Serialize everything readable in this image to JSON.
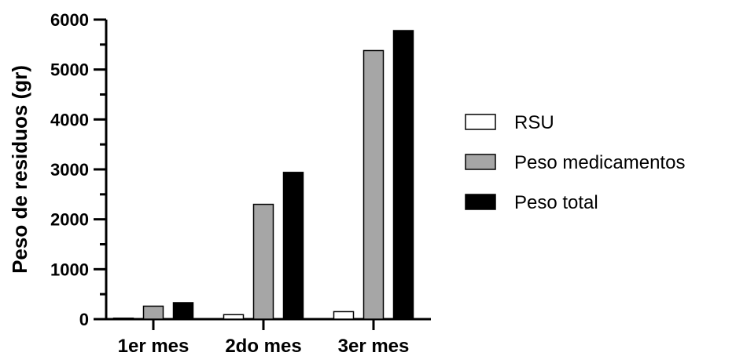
{
  "chart_data": {
    "type": "bar",
    "title": "",
    "xlabel": "",
    "ylabel": "Peso de residuos (gr)",
    "categories": [
      "1er mes",
      "2do mes",
      "3er mes"
    ],
    "ylim": [
      0,
      6000
    ],
    "yticks": [
      0,
      1000,
      2000,
      3000,
      4000,
      5000,
      6000
    ],
    "grid": false,
    "legend_position": "right",
    "series": [
      {
        "name": "RSU",
        "values": [
          20,
          90,
          150
        ],
        "fill": "#ffffff",
        "stroke": "#000000"
      },
      {
        "name": "Peso medicamentos",
        "values": [
          260,
          2300,
          5380
        ],
        "fill": "#a6a6a6",
        "stroke": "#000000"
      },
      {
        "name": "Peso total",
        "values": [
          330,
          2940,
          5780
        ],
        "fill": "#000000",
        "stroke": "#000000"
      }
    ]
  }
}
